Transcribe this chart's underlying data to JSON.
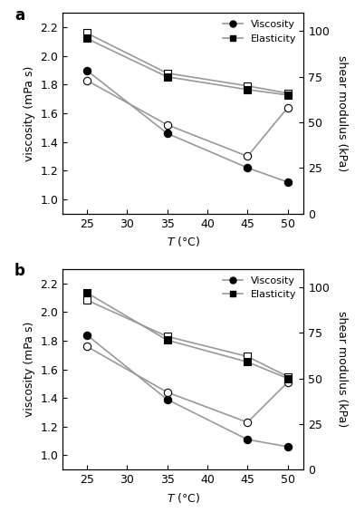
{
  "panel_a": {
    "label": "a",
    "temp": [
      25,
      35,
      45,
      50
    ],
    "viscosity_heating": [
      1.9,
      1.46,
      1.22,
      1.12
    ],
    "viscosity_cooling": [
      1.83,
      1.52,
      1.3,
      1.64
    ],
    "elasticity_heating_kPa": [
      96,
      75,
      68,
      65
    ],
    "elasticity_cooling_kPa": [
      99,
      77,
      70,
      66
    ],
    "ylim_left": [
      0.9,
      2.3
    ],
    "ylim_right": [
      0,
      110
    ],
    "yticks_left": [
      1.0,
      1.2,
      1.4,
      1.6,
      1.8,
      2.0,
      2.2
    ],
    "yticks_right": [
      0,
      25,
      50,
      75,
      100
    ]
  },
  "panel_b": {
    "label": "b",
    "temp": [
      25,
      35,
      45,
      50
    ],
    "viscosity_heating": [
      1.84,
      1.39,
      1.11,
      1.06
    ],
    "viscosity_cooling": [
      1.76,
      1.44,
      1.23,
      1.51
    ],
    "elasticity_heating_kPa": [
      97,
      71,
      59,
      50
    ],
    "elasticity_cooling_kPa": [
      93,
      73,
      62,
      51
    ],
    "ylim_left": [
      0.9,
      2.3
    ],
    "ylim_right": [
      0,
      110
    ],
    "yticks_left": [
      1.0,
      1.2,
      1.4,
      1.6,
      1.8,
      2.0,
      2.2
    ],
    "yticks_right": [
      0,
      25,
      50,
      75,
      100
    ]
  },
  "xlabel": "T (°C)",
  "ylabel_left": "viscosity (mPa s)",
  "ylabel_right": "shear modulus (kPa)",
  "xticks": [
    25,
    30,
    35,
    40,
    45,
    50
  ],
  "xlim": [
    22,
    52
  ],
  "marker_size": 6,
  "line_color": "#999999",
  "legend_viscosity": "Viscosity",
  "legend_elasticity": "Elasticity"
}
